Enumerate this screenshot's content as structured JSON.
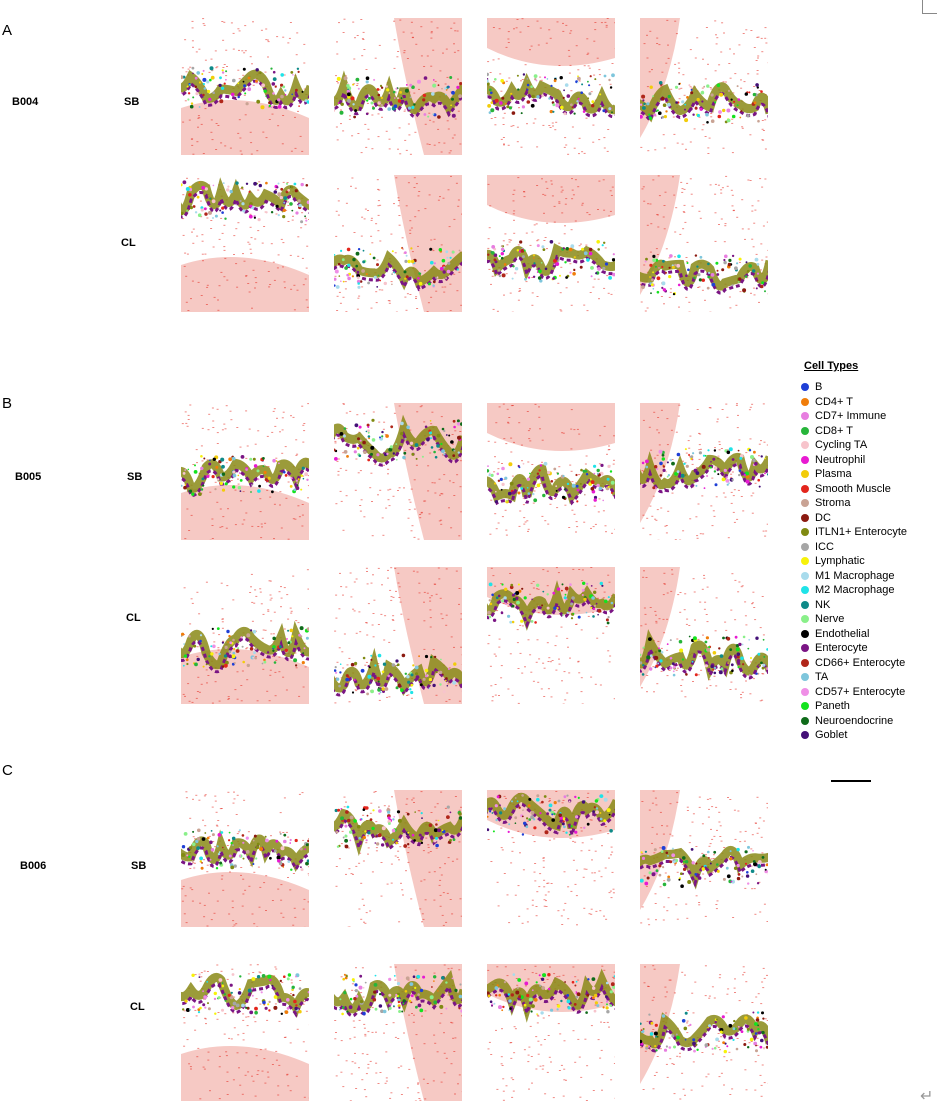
{
  "panels": [
    {
      "letter": "A",
      "sample": "B004",
      "rows": [
        "SB",
        "CL"
      ]
    },
    {
      "letter": "B",
      "sample": "B005",
      "rows": [
        "SB",
        "CL"
      ]
    },
    {
      "letter": "C",
      "sample": "B006",
      "rows": [
        "SB",
        "CL"
      ]
    }
  ],
  "legend": {
    "title": "Cell Types",
    "items": [
      {
        "label": "B",
        "color": "#1f3fd6"
      },
      {
        "label": "CD4+ T",
        "color": "#f07d0a"
      },
      {
        "label": "CD7+ Immune",
        "color": "#e77ee0"
      },
      {
        "label": "CD8+ T",
        "color": "#27b53a"
      },
      {
        "label": "Cycling TA",
        "color": "#f7c4cc"
      },
      {
        "label": "Neutrophil",
        "color": "#e81ad2"
      },
      {
        "label": "Plasma",
        "color": "#f2cc0a"
      },
      {
        "label": "Smooth Muscle",
        "color": "#e3251c"
      },
      {
        "label": "Stroma",
        "color": "#c9a394"
      },
      {
        "label": "DC",
        "color": "#8b1a10"
      },
      {
        "label": "ITLN1+ Enterocyte",
        "color": "#808a12"
      },
      {
        "label": "ICC",
        "color": "#a6a6a6"
      },
      {
        "label": "Lymphatic",
        "color": "#f7f20a"
      },
      {
        "label": "M1 Macrophage",
        "color": "#a8dbec"
      },
      {
        "label": "M2 Macrophage",
        "color": "#1fe3e8"
      },
      {
        "label": "NK",
        "color": "#0e8a88"
      },
      {
        "label": "Nerve",
        "color": "#8af08a"
      },
      {
        "label": "Endothelial",
        "color": "#000000"
      },
      {
        "label": "Enterocyte",
        "color": "#7a1584"
      },
      {
        "label": "CD66+ Enterocyte",
        "color": "#b0261a"
      },
      {
        "label": "TA",
        "color": "#7ec6dc"
      },
      {
        "label": "CD57+ Enterocyte",
        "color": "#ef8fe6"
      },
      {
        "label": "Paneth",
        "color": "#14e31e"
      },
      {
        "label": "Neuroendocrine",
        "color": "#0f6b1a"
      },
      {
        "label": "Goblet",
        "color": "#441077"
      }
    ]
  }
}
